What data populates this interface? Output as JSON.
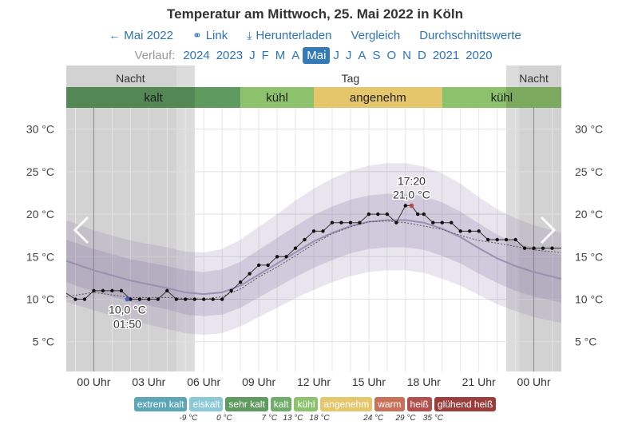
{
  "title": "Temperatur am Mittwoch, 25. Mai 2022 in Köln",
  "nav": [
    {
      "icon": "arrow-left-icon",
      "glyph": "←",
      "label": "Mai 2022"
    },
    {
      "icon": "link-icon",
      "glyph": "⚭",
      "label": "Link"
    },
    {
      "icon": "download-icon",
      "glyph": "⤓",
      "label": "Herunterladen"
    },
    {
      "icon": "",
      "glyph": "",
      "label": "Vergleich"
    },
    {
      "icon": "",
      "glyph": "",
      "label": "Durchschnittswerte"
    }
  ],
  "history": {
    "label": "Verlauf:",
    "items": [
      "2024",
      "2023",
      "J",
      "F",
      "M",
      "A",
      "Mai",
      "J",
      "J",
      "A",
      "S",
      "O",
      "N",
      "D",
      "2021",
      "2020"
    ],
    "active_index": 6
  },
  "chart_data": {
    "type": "line",
    "y_unit": "°C",
    "ylim": [
      1.5,
      32.5
    ],
    "yticks": [
      5,
      10,
      15,
      20,
      25,
      30
    ],
    "ytick_labels": [
      "5 °C",
      "10 °C",
      "15 °C",
      "20 °C",
      "25 °C",
      "30 °C"
    ],
    "xlim": [
      -1.5,
      25.5
    ],
    "xticks": [
      0,
      3,
      6,
      9,
      12,
      15,
      18,
      21,
      24
    ],
    "xtick_labels": [
      "00 Uhr",
      "03 Uhr",
      "06 Uhr",
      "09 Uhr",
      "12 Uhr",
      "15 Uhr",
      "18 Uhr",
      "21 Uhr",
      "00 Uhr"
    ],
    "day_night": [
      {
        "label": "Nacht",
        "from": -1.5,
        "to": 5.5
      },
      {
        "label": "Tag",
        "from": 5.5,
        "to": 22.5
      },
      {
        "label": "Nacht",
        "from": 22.5,
        "to": 25.5
      }
    ],
    "comfort_bands": [
      {
        "label": "kalt",
        "from": -1.5,
        "to": 8.0,
        "color": "#5f9a5f"
      },
      {
        "label": "kühl",
        "from": 8.0,
        "to": 12.0,
        "color": "#8cc26b"
      },
      {
        "label": "angenehm",
        "from": 12.0,
        "to": 19.0,
        "color": "#e5c66b"
      },
      {
        "label": "kühl",
        "from": 19.0,
        "to": 25.5,
        "color": "#8cc26b"
      }
    ],
    "normal_x": [
      -1.5,
      0,
      2,
      4,
      5,
      6,
      7,
      8,
      9,
      10,
      11,
      12,
      13,
      14,
      15,
      16,
      17,
      18,
      19,
      20,
      21,
      22,
      23,
      24,
      25.5
    ],
    "normal_mean": [
      14.5,
      13.4,
      12.2,
      11.3,
      10.8,
      10.6,
      10.8,
      11.6,
      12.9,
      14.2,
      15.5,
      16.8,
      17.8,
      18.6,
      19.1,
      19.3,
      19.3,
      19.0,
      18.3,
      17.3,
      16.0,
      14.8,
      13.9,
      13.2,
      12.4
    ],
    "band_inner_upper": [
      17.0,
      15.9,
      14.7,
      13.9,
      13.4,
      13.2,
      13.5,
      14.4,
      15.8,
      17.2,
      18.6,
      19.9,
      20.9,
      21.7,
      22.2,
      22.4,
      22.4,
      22.1,
      21.4,
      20.3,
      18.9,
      17.6,
      16.7,
      16.0,
      15.2
    ],
    "band_inner_lower": [
      12.0,
      10.9,
      9.7,
      8.8,
      8.2,
      8.0,
      8.2,
      9.0,
      10.2,
      11.4,
      12.6,
      13.7,
      14.6,
      15.4,
      15.9,
      16.1,
      16.1,
      15.8,
      15.1,
      14.2,
      13.0,
      11.9,
      11.0,
      10.3,
      9.6
    ],
    "band_outer_upper": [
      19.3,
      18.1,
      16.9,
      16.1,
      15.6,
      15.5,
      15.9,
      17.0,
      18.5,
      20.0,
      21.6,
      23.0,
      24.2,
      25.1,
      25.7,
      26.0,
      26.0,
      25.6,
      24.8,
      23.6,
      22.0,
      20.6,
      19.5,
      18.7,
      17.8
    ],
    "band_outer_lower": [
      9.7,
      8.7,
      7.5,
      6.5,
      6.0,
      5.8,
      6.0,
      6.8,
      7.9,
      9.0,
      10.1,
      11.1,
      12.0,
      12.7,
      13.2,
      13.4,
      13.4,
      13.1,
      12.4,
      11.6,
      10.5,
      9.4,
      8.6,
      7.9,
      7.2
    ],
    "series": [
      {
        "x": [
          -1.5,
          -1.0,
          -0.5,
          0,
          0.5,
          1,
          1.5,
          2,
          2.5,
          3,
          3.5,
          4,
          4.5,
          5,
          5.5,
          6,
          6.5,
          7,
          7.5,
          8,
          8.5,
          9,
          9.5,
          10,
          10.5,
          11,
          11.5,
          12,
          12.5,
          13,
          13.5,
          14,
          14.5,
          15,
          15.5,
          16,
          16.5,
          17,
          17.33,
          17.67,
          18,
          18.5,
          19,
          19.5,
          20,
          20.5,
          21,
          21.5,
          22,
          22.5,
          23,
          23.5,
          24,
          24.5,
          25,
          25.5
        ],
        "y": [
          10.7,
          10.0,
          10.0,
          11.0,
          11.0,
          11.0,
          11.0,
          10.0,
          10.0,
          10.0,
          10.0,
          11.0,
          10.0,
          10.0,
          10.0,
          10.0,
          10.0,
          10.0,
          11.0,
          12.0,
          13.0,
          14.0,
          14.0,
          15.0,
          15.0,
          16.0,
          17.0,
          18.0,
          18.0,
          19.0,
          19.0,
          19.0,
          19.0,
          20.0,
          20.0,
          20.0,
          19.0,
          21.0,
          21.0,
          20.0,
          20.0,
          19.0,
          19.0,
          19.0,
          18.0,
          18.0,
          18.0,
          17.0,
          17.0,
          17.0,
          17.0,
          16.0,
          16.0,
          16.0,
          16.0,
          16.0
        ]
      }
    ],
    "secondary_x": [
      -1.5,
      0,
      2,
      4,
      6,
      7,
      8,
      9,
      10,
      11,
      12,
      13,
      14,
      15,
      16,
      17,
      18,
      19,
      20,
      21,
      22,
      23,
      24,
      25.5
    ],
    "secondary_y": [
      10.3,
      10.8,
      10.2,
      10.2,
      10.0,
      10.3,
      11.2,
      12.6,
      13.8,
      15.1,
      16.5,
      17.7,
      18.5,
      19.1,
      19.2,
      19.0,
      18.6,
      18.2,
      17.5,
      16.9,
      16.6,
      16.2,
      15.8,
      15.5
    ],
    "annotations": [
      {
        "x": 17.33,
        "y": 21.0,
        "time": "17:20",
        "value": "21,0 °C",
        "position": "above",
        "color": "#b94a48"
      },
      {
        "x": 1.83,
        "y": 10.0,
        "time": "01:50",
        "value": "10,0 °C",
        "position": "below",
        "color": "#4a5bc4"
      }
    ],
    "grid": true,
    "legend": "bottom"
  },
  "legend_chips": [
    {
      "label": "extrem kalt",
      "color": "#5da6b8"
    },
    {
      "label": "eiskalt",
      "color": "#8cc9d6"
    },
    {
      "label": "sehr kalt",
      "color": "#5f9a5f"
    },
    {
      "label": "kalt",
      "color": "#6fad6a"
    },
    {
      "label": "kühl",
      "color": "#8cc26b"
    },
    {
      "label": "angenehm",
      "color": "#e5c66b"
    },
    {
      "label": "warm",
      "color": "#c97058"
    },
    {
      "label": "heiß",
      "color": "#b24f4c"
    },
    {
      "label": "glühend heiß",
      "color": "#993d3d"
    }
  ],
  "legend_thresholds": [
    "-9 °C",
    "0 °C",
    "7 °C",
    "13 °C",
    "18 °C",
    "24 °C",
    "29 °C",
    "35 °C"
  ]
}
